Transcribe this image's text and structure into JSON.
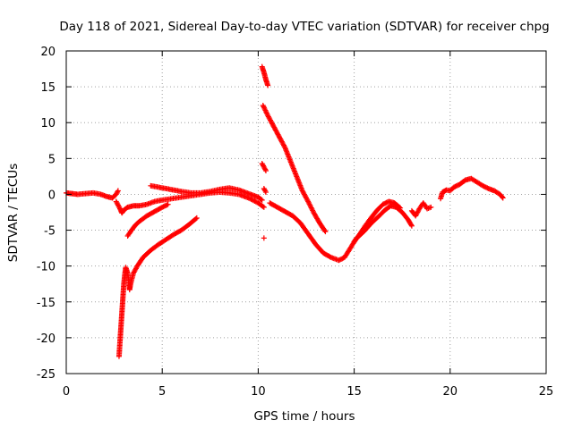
{
  "chart_data": {
    "type": "scatter",
    "title": "Day 118 of 2021, Sidereal Day-to-day VTEC variation (SDTVAR) for receiver chpg",
    "xlabel": "GPS time / hours",
    "ylabel": "SDTVAR / TECUs",
    "xlim": [
      0,
      25
    ],
    "ylim": [
      -25,
      20
    ],
    "xticks": [
      0,
      5,
      10,
      15,
      20,
      25
    ],
    "yticks": [
      -25,
      -20,
      -15,
      -10,
      -5,
      0,
      5,
      10,
      15,
      20
    ],
    "grid": true,
    "marker": "+",
    "color": "#ff0000",
    "series": [
      {
        "name": "segment-1",
        "points": [
          [
            0.0,
            0.2
          ],
          [
            0.3,
            0.1
          ],
          [
            0.6,
            0.0
          ],
          [
            1.0,
            0.1
          ],
          [
            1.4,
            0.2
          ],
          [
            1.8,
            0.0
          ],
          [
            2.1,
            -0.3
          ],
          [
            2.4,
            -0.5
          ],
          [
            2.6,
            0.0
          ],
          [
            2.7,
            0.5
          ]
        ]
      },
      {
        "name": "segment-2",
        "points": [
          [
            2.6,
            -1.0
          ],
          [
            2.8,
            -2.0
          ],
          [
            2.9,
            -2.6
          ],
          [
            3.0,
            -2.2
          ],
          [
            3.2,
            -1.8
          ],
          [
            3.5,
            -1.6
          ],
          [
            3.8,
            -1.6
          ],
          [
            4.2,
            -1.4
          ],
          [
            4.6,
            -1.0
          ],
          [
            5.0,
            -0.8
          ],
          [
            5.5,
            -0.6
          ],
          [
            6.0,
            -0.4
          ],
          [
            6.5,
            -0.2
          ],
          [
            7.0,
            0.0
          ],
          [
            7.5,
            0.2
          ],
          [
            8.0,
            0.3
          ],
          [
            8.5,
            0.2
          ],
          [
            9.0,
            0.0
          ],
          [
            9.5,
            -0.5
          ],
          [
            10.0,
            -1.2
          ],
          [
            10.3,
            -1.8
          ]
        ]
      },
      {
        "name": "segment-3",
        "points": [
          [
            4.4,
            1.2
          ],
          [
            4.8,
            1.0
          ],
          [
            5.2,
            0.8
          ],
          [
            5.6,
            0.6
          ],
          [
            6.0,
            0.4
          ],
          [
            6.5,
            0.2
          ],
          [
            7.0,
            0.2
          ],
          [
            7.5,
            0.4
          ],
          [
            8.0,
            0.7
          ],
          [
            8.5,
            0.9
          ],
          [
            9.0,
            0.6
          ],
          [
            9.5,
            0.1
          ],
          [
            10.0,
            -0.4
          ],
          [
            10.2,
            -0.8
          ]
        ]
      },
      {
        "name": "segment-4",
        "points": [
          [
            2.75,
            -22.6
          ],
          [
            2.8,
            -20.5
          ],
          [
            2.85,
            -18.5
          ],
          [
            2.9,
            -16.5
          ],
          [
            2.95,
            -14.5
          ],
          [
            3.0,
            -12.5
          ],
          [
            3.05,
            -11.2
          ],
          [
            3.1,
            -10.2
          ],
          [
            3.2,
            -11.0
          ],
          [
            3.3,
            -13.3
          ],
          [
            3.35,
            -12.5
          ],
          [
            3.5,
            -11.0
          ],
          [
            3.7,
            -10.0
          ],
          [
            4.0,
            -8.8
          ],
          [
            4.4,
            -7.8
          ],
          [
            4.8,
            -7.0
          ],
          [
            5.2,
            -6.3
          ],
          [
            5.6,
            -5.6
          ],
          [
            6.0,
            -5.0
          ],
          [
            6.4,
            -4.2
          ],
          [
            6.8,
            -3.3
          ]
        ]
      },
      {
        "name": "segment-5",
        "points": [
          [
            3.2,
            -5.8
          ],
          [
            3.4,
            -5.0
          ],
          [
            3.6,
            -4.3
          ],
          [
            3.8,
            -3.8
          ],
          [
            4.2,
            -3.0
          ],
          [
            4.6,
            -2.4
          ],
          [
            5.0,
            -1.8
          ],
          [
            5.3,
            -1.4
          ]
        ]
      },
      {
        "name": "segment-6",
        "points": [
          [
            10.2,
            17.8
          ],
          [
            10.3,
            17.0
          ],
          [
            10.4,
            16.0
          ],
          [
            10.5,
            15.2
          ]
        ]
      },
      {
        "name": "segment-7",
        "points": [
          [
            10.25,
            12.4
          ],
          [
            10.5,
            11.0
          ],
          [
            10.8,
            9.5
          ],
          [
            11.1,
            8.0
          ],
          [
            11.4,
            6.5
          ],
          [
            11.7,
            4.5
          ],
          [
            12.0,
            2.5
          ],
          [
            12.3,
            0.5
          ],
          [
            12.6,
            -1.0
          ],
          [
            12.9,
            -2.6
          ],
          [
            13.2,
            -4.0
          ],
          [
            13.5,
            -5.2
          ]
        ]
      },
      {
        "name": "segment-8",
        "points": [
          [
            10.2,
            4.3
          ],
          [
            10.3,
            3.8
          ],
          [
            10.4,
            3.3
          ]
        ]
      },
      {
        "name": "segment-9",
        "points": [
          [
            10.3,
            0.8
          ],
          [
            10.4,
            0.3
          ]
        ]
      },
      {
        "name": "segment-10",
        "points": [
          [
            10.3,
            -6.1
          ]
        ]
      },
      {
        "name": "segment-11",
        "points": [
          [
            10.6,
            -1.2
          ],
          [
            11.0,
            -1.8
          ],
          [
            11.4,
            -2.4
          ],
          [
            11.8,
            -3.0
          ],
          [
            12.2,
            -4.0
          ],
          [
            12.6,
            -5.5
          ],
          [
            13.0,
            -7.0
          ],
          [
            13.4,
            -8.2
          ],
          [
            13.8,
            -8.8
          ],
          [
            14.2,
            -9.2
          ],
          [
            14.5,
            -8.8
          ],
          [
            14.8,
            -7.5
          ],
          [
            15.1,
            -6.2
          ],
          [
            15.5,
            -5.2
          ],
          [
            15.9,
            -4.0
          ],
          [
            16.3,
            -3.0
          ],
          [
            16.6,
            -2.2
          ],
          [
            16.9,
            -1.6
          ],
          [
            17.2,
            -1.8
          ],
          [
            17.5,
            -2.5
          ],
          [
            17.8,
            -3.5
          ],
          [
            18.0,
            -4.4
          ]
        ]
      },
      {
        "name": "segment-12",
        "points": [
          [
            15.0,
            -6.6
          ],
          [
            15.3,
            -5.5
          ],
          [
            15.6,
            -4.3
          ],
          [
            15.9,
            -3.2
          ],
          [
            16.2,
            -2.2
          ],
          [
            16.5,
            -1.4
          ],
          [
            16.8,
            -1.0
          ],
          [
            17.1,
            -1.2
          ],
          [
            17.4,
            -1.9
          ]
        ]
      },
      {
        "name": "segment-13",
        "points": [
          [
            18.0,
            -2.3
          ],
          [
            18.2,
            -3.0
          ],
          [
            18.4,
            -2.0
          ],
          [
            18.6,
            -1.2
          ],
          [
            18.8,
            -2.0
          ],
          [
            19.0,
            -1.8
          ]
        ]
      },
      {
        "name": "segment-14",
        "points": [
          [
            19.5,
            -0.6
          ],
          [
            19.6,
            0.3
          ],
          [
            19.8,
            0.6
          ],
          [
            20.0,
            0.5
          ],
          [
            20.2,
            1.0
          ],
          [
            20.5,
            1.4
          ],
          [
            20.8,
            2.0
          ],
          [
            21.1,
            2.2
          ],
          [
            21.4,
            1.7
          ],
          [
            21.7,
            1.2
          ],
          [
            22.0,
            0.8
          ],
          [
            22.3,
            0.5
          ],
          [
            22.6,
            0.0
          ],
          [
            22.75,
            -0.5
          ]
        ]
      }
    ]
  }
}
